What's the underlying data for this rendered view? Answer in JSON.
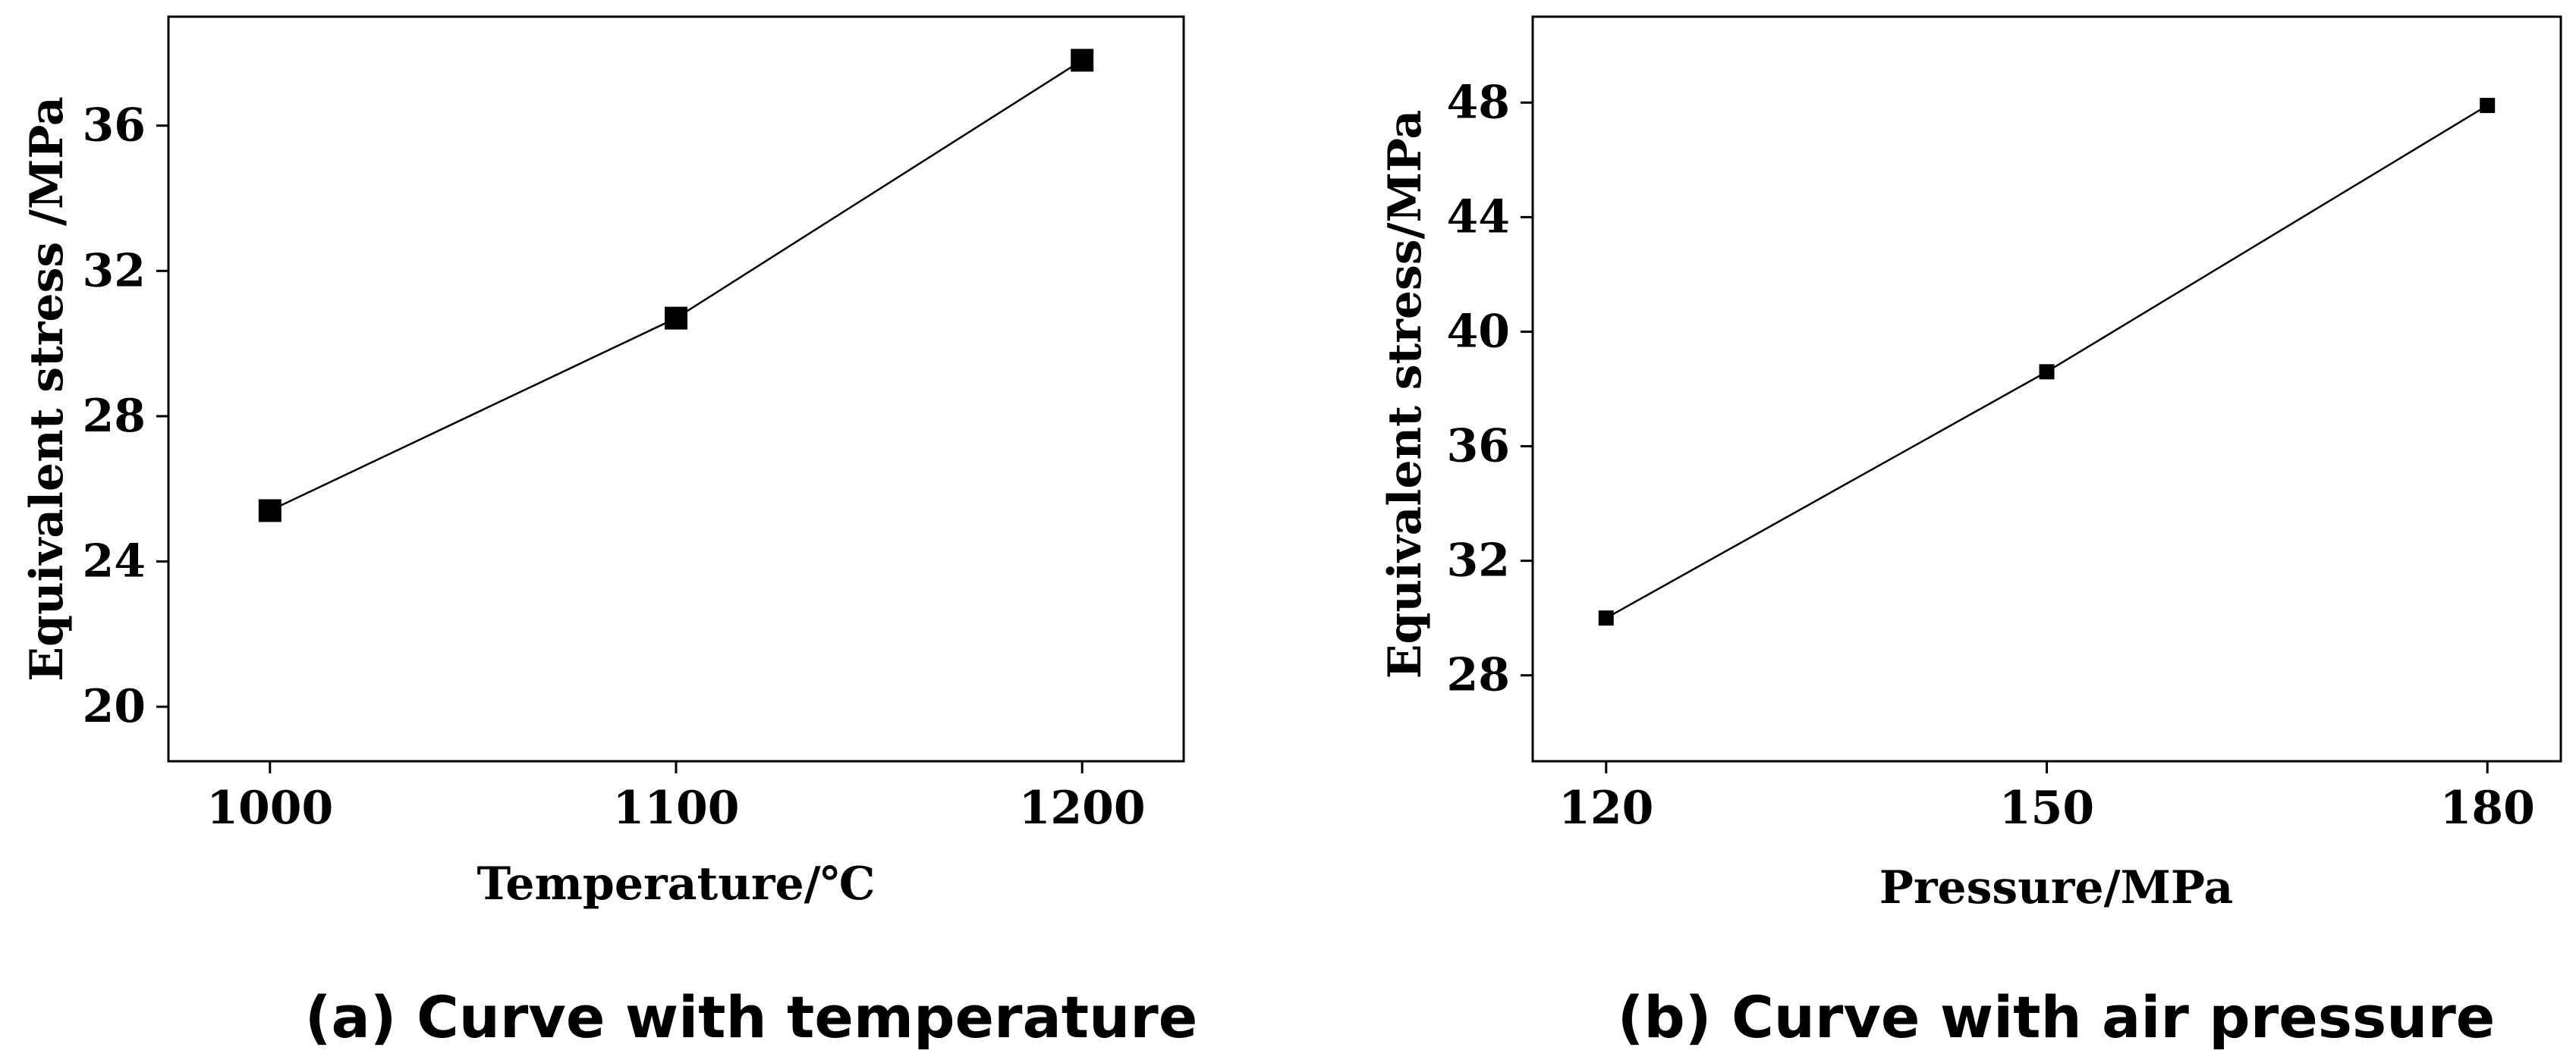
{
  "chart_data": [
    {
      "type": "line",
      "caption": "(a) Curve with temperature",
      "xlabel": "Temperature/℃",
      "ylabel": "Equivalent stress /MPa",
      "x": [
        1000,
        1100,
        1200
      ],
      "values": [
        25.4,
        30.7,
        37.8
      ],
      "xlim": [
        975,
        1225
      ],
      "ylim": [
        18.5,
        39
      ],
      "xticks": [
        1000,
        1100,
        1200
      ],
      "yticks": [
        20,
        24,
        28,
        32,
        36
      ],
      "marker": "square",
      "grid": false,
      "color": "#000000"
    },
    {
      "type": "line",
      "caption": "(b) Curve with air pressure",
      "xlabel": "Pressure/MPa",
      "ylabel": "Equivalent stress/MPa",
      "x": [
        120,
        150,
        180
      ],
      "values": [
        30.0,
        38.6,
        47.9
      ],
      "xlim": [
        115,
        185
      ],
      "ylim": [
        25,
        51
      ],
      "xticks": [
        120,
        150,
        180
      ],
      "yticks": [
        28,
        32,
        36,
        40,
        44,
        48
      ],
      "marker": "square",
      "grid": false,
      "color": "#000000"
    }
  ]
}
